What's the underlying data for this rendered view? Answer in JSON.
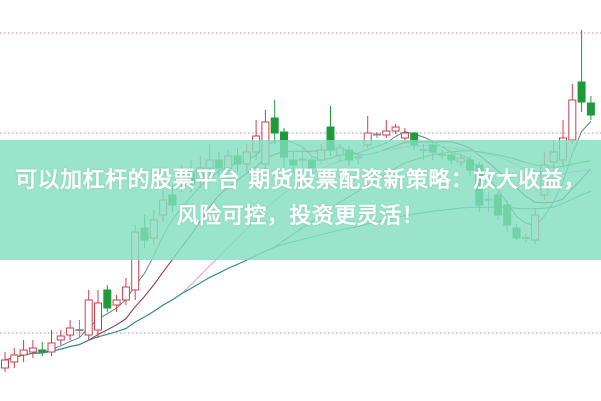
{
  "headline": "可以加杠杆的股票平台 期货股票配资新策略：放大收益，风险可控，投资更灵活！",
  "colors": {
    "up": "#d23b4a",
    "down": "#1f9a3a",
    "neutral": "#888888",
    "grid": "#c07080",
    "banner": "#97e3c9"
  },
  "chart_data": {
    "type": "candlestick",
    "title": "",
    "xlabel": "",
    "ylabel": "",
    "ylim": [
      0,
      100
    ],
    "gridlines": [
      91.75,
      66.75,
      16.75
    ],
    "candles": [
      {
        "o": 8,
        "c": 10,
        "h": 12,
        "l": 7
      },
      {
        "o": 9.5,
        "c": 11.25,
        "h": 13,
        "l": 8
      },
      {
        "o": 11.25,
        "c": 12.5,
        "h": 15,
        "l": 9.5
      },
      {
        "o": 12,
        "c": 13,
        "h": 15,
        "l": 10.5
      },
      {
        "o": 12.5,
        "c": 12,
        "h": 14.5,
        "l": 11
      },
      {
        "o": 12,
        "c": 14.25,
        "h": 17.5,
        "l": 11
      },
      {
        "o": 15,
        "c": 16,
        "h": 17.5,
        "l": 13.75
      },
      {
        "o": 16.25,
        "c": 18,
        "h": 20,
        "l": 15
      },
      {
        "o": 17.5,
        "c": 17.6,
        "h": 20,
        "l": 15.5
      },
      {
        "o": 16.25,
        "c": 25,
        "h": 27.5,
        "l": 15
      },
      {
        "o": 17.5,
        "c": 24.25,
        "h": 27.5,
        "l": 15.5
      },
      {
        "o": 27.5,
        "c": 23,
        "h": 28.75,
        "l": 22
      },
      {
        "o": 23.75,
        "c": 25,
        "h": 26.25,
        "l": 22
      },
      {
        "o": 25,
        "c": 28.25,
        "h": 30.5,
        "l": 23.75
      },
      {
        "o": 27.5,
        "c": 42,
        "h": 43.75,
        "l": 25
      },
      {
        "o": 43,
        "c": 40,
        "h": 46.25,
        "l": 38
      },
      {
        "o": 40.5,
        "c": 45,
        "h": 47.5,
        "l": 38.75
      },
      {
        "o": 46.25,
        "c": 50,
        "h": 52.5,
        "l": 44.5
      },
      {
        "o": 51.25,
        "c": 48.75,
        "h": 53.75,
        "l": 47
      },
      {
        "o": 53.75,
        "c": 56.25,
        "h": 58.75,
        "l": 52
      },
      {
        "o": 57,
        "c": 54,
        "h": 60,
        "l": 52
      },
      {
        "o": 55,
        "c": 58,
        "h": 61,
        "l": 53
      },
      {
        "o": 58,
        "c": 60,
        "h": 64,
        "l": 56
      },
      {
        "o": 60,
        "c": 58,
        "h": 62,
        "l": 56
      },
      {
        "o": 58,
        "c": 61,
        "h": 62.5,
        "l": 56
      },
      {
        "o": 61,
        "c": 59,
        "h": 63,
        "l": 57
      },
      {
        "o": 59,
        "c": 62,
        "h": 64,
        "l": 57
      },
      {
        "o": 62,
        "c": 66,
        "h": 70,
        "l": 60
      },
      {
        "o": 59,
        "c": 69.5,
        "h": 72.5,
        "l": 57
      },
      {
        "o": 70.5,
        "c": 66.75,
        "h": 75,
        "l": 64
      },
      {
        "o": 67,
        "c": 60.75,
        "h": 68,
        "l": 58
      },
      {
        "o": 60,
        "c": 58.75,
        "h": 62,
        "l": 57
      },
      {
        "o": 60,
        "c": 60.25,
        "h": 63,
        "l": 58
      },
      {
        "o": 60,
        "c": 58,
        "h": 61,
        "l": 57
      },
      {
        "o": 60,
        "c": 62.5,
        "h": 64,
        "l": 59
      },
      {
        "o": 68.25,
        "c": 62.5,
        "h": 73.5,
        "l": 61
      },
      {
        "o": 61.25,
        "c": 63,
        "h": 64,
        "l": 59.5
      },
      {
        "o": 62.5,
        "c": 60,
        "h": 63.5,
        "l": 58.5
      },
      {
        "o": 60.5,
        "c": 60.75,
        "h": 62,
        "l": 59
      },
      {
        "o": 63.75,
        "c": 66.75,
        "h": 71,
        "l": 63
      },
      {
        "o": 66.25,
        "c": 66.5,
        "h": 67,
        "l": 65.5
      },
      {
        "o": 66.25,
        "c": 67.25,
        "h": 70,
        "l": 65.5
      },
      {
        "o": 67.25,
        "c": 68.25,
        "h": 69,
        "l": 66.5
      },
      {
        "o": 65.5,
        "c": 66.75,
        "h": 68,
        "l": 64
      },
      {
        "o": 66.75,
        "c": 63.75,
        "h": 67,
        "l": 62.5
      },
      {
        "o": 62.5,
        "c": 62.6,
        "h": 64,
        "l": 60
      },
      {
        "o": 63.75,
        "c": 62,
        "h": 64.5,
        "l": 60
      },
      {
        "o": 61.25,
        "c": 61.4,
        "h": 62.5,
        "l": 60
      },
      {
        "o": 61.25,
        "c": 60,
        "h": 62,
        "l": 59
      },
      {
        "o": 59.5,
        "c": 60.5,
        "h": 61.5,
        "l": 58.5
      },
      {
        "o": 60,
        "c": 57.5,
        "h": 61,
        "l": 56
      },
      {
        "o": 58.75,
        "c": 48.75,
        "h": 59.5,
        "l": 47
      },
      {
        "o": 50,
        "c": 50.2,
        "h": 52,
        "l": 47
      },
      {
        "o": 51.25,
        "c": 46.25,
        "h": 52,
        "l": 45
      },
      {
        "o": 48.75,
        "c": 43.75,
        "h": 50,
        "l": 42
      },
      {
        "o": 43,
        "c": 40.5,
        "h": 44,
        "l": 40
      },
      {
        "o": 40.5,
        "c": 40.6,
        "h": 41.5,
        "l": 39.5
      },
      {
        "o": 40,
        "c": 46.25,
        "h": 48,
        "l": 39
      },
      {
        "o": 51.25,
        "c": 58.75,
        "h": 62,
        "l": 50
      },
      {
        "o": 59.5,
        "c": 62,
        "h": 65,
        "l": 58
      },
      {
        "o": 60,
        "c": 65.5,
        "h": 70,
        "l": 58.5
      },
      {
        "o": 65,
        "c": 75,
        "h": 79,
        "l": 64
      },
      {
        "o": 79.5,
        "c": 74.5,
        "h": 92.5,
        "l": 72
      },
      {
        "o": 74.25,
        "c": 71.25,
        "h": 76,
        "l": 70
      }
    ],
    "moving_averages": [
      {
        "period": 5,
        "color": "#5f7f95"
      },
      {
        "period": 10,
        "color": "#8a2a4a"
      },
      {
        "period": 20,
        "color": "#e49be0"
      },
      {
        "period": 30,
        "color": "#5d8a3a"
      },
      {
        "period": 60,
        "color": "#2f8f8f"
      }
    ]
  }
}
